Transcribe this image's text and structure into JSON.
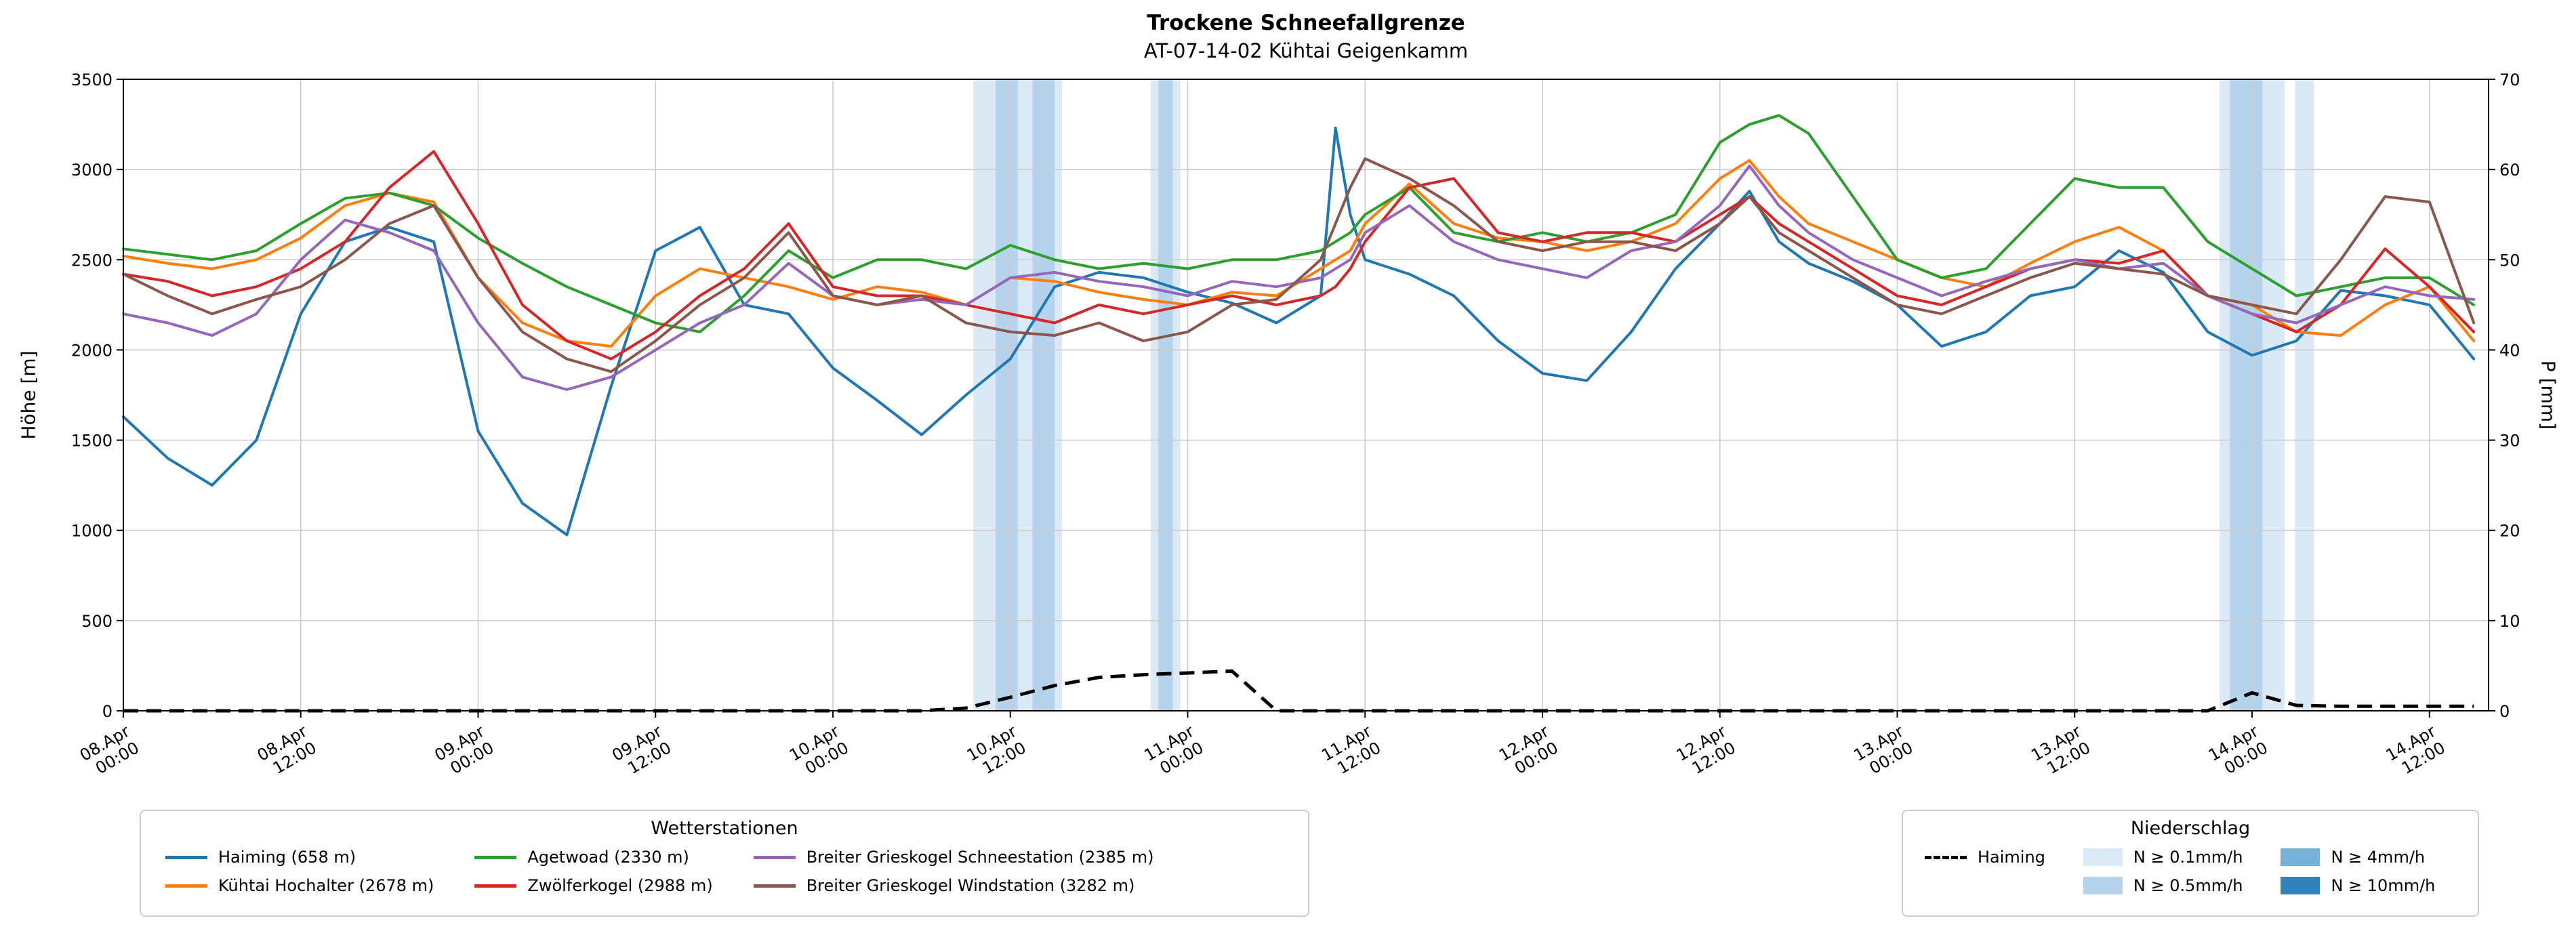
{
  "chart_data": {
    "type": "line",
    "title": "Trockene Schneefallgrenze",
    "subtitle": "AT-07-14-02 Kühtai Geigenkamm",
    "ylabel_left": "Höhe [m]",
    "ylabel_right": "P [mm]",
    "ylim_left": [
      0,
      3500
    ],
    "ylim_right": [
      0,
      70
    ],
    "xlim_hours": [
      0,
      160
    ],
    "grid": true,
    "grid_color": "#cccccc",
    "yticks_left": [
      0,
      500,
      1000,
      1500,
      2000,
      2500,
      3000,
      3500
    ],
    "yticks_right": [
      0,
      10,
      20,
      30,
      40,
      50,
      60,
      70
    ],
    "x_ticks": [
      {
        "h": 0,
        "date": "08.Apr",
        "time": "00:00"
      },
      {
        "h": 12,
        "date": "08.Apr",
        "time": "12:00"
      },
      {
        "h": 24,
        "date": "09.Apr",
        "time": "00:00"
      },
      {
        "h": 36,
        "date": "09.Apr",
        "time": "12:00"
      },
      {
        "h": 48,
        "date": "10.Apr",
        "time": "00:00"
      },
      {
        "h": 60,
        "date": "10.Apr",
        "time": "12:00"
      },
      {
        "h": 72,
        "date": "11.Apr",
        "time": "00:00"
      },
      {
        "h": 84,
        "date": "11.Apr",
        "time": "12:00"
      },
      {
        "h": 96,
        "date": "12.Apr",
        "time": "00:00"
      },
      {
        "h": 108,
        "date": "12.Apr",
        "time": "12:00"
      },
      {
        "h": 120,
        "date": "13.Apr",
        "time": "00:00"
      },
      {
        "h": 132,
        "date": "13.Apr",
        "time": "12:00"
      },
      {
        "h": 144,
        "date": "14.Apr",
        "time": "00:00"
      },
      {
        "h": 156,
        "date": "14.Apr",
        "time": "12:00"
      }
    ],
    "x_hours": [
      0,
      3,
      6,
      9,
      12,
      15,
      18,
      21,
      24,
      27,
      30,
      33,
      36,
      39,
      42,
      45,
      48,
      51,
      54,
      57,
      60,
      63,
      66,
      69,
      72,
      75,
      78,
      81,
      82,
      83,
      84,
      87,
      90,
      93,
      96,
      99,
      102,
      105,
      108,
      110,
      112,
      114,
      117,
      120,
      123,
      126,
      129,
      132,
      135,
      138,
      141,
      144,
      147,
      150,
      153,
      156,
      159
    ],
    "series": [
      {
        "name": "Haiming (658 m)",
        "color": "#1f77b4",
        "values": [
          1630,
          1400,
          1250,
          1500,
          2200,
          2600,
          2680,
          2600,
          1550,
          1150,
          975,
          1800,
          2550,
          2680,
          2250,
          2200,
          1900,
          1720,
          1530,
          1750,
          1950,
          2350,
          2430,
          2400,
          2320,
          2260,
          2150,
          2300,
          3230,
          2750,
          2500,
          2420,
          2300,
          2050,
          1870,
          1830,
          2100,
          2450,
          2700,
          2880,
          2600,
          2480,
          2380,
          2250,
          2020,
          2100,
          2300,
          2350,
          2550,
          2430,
          2100,
          1970,
          2050,
          2330,
          2300,
          2250,
          1950
        ]
      },
      {
        "name": "Kühtai Hochalter (2678 m)",
        "color": "#ff7f0e",
        "values": [
          2520,
          2480,
          2450,
          2500,
          2620,
          2800,
          2870,
          2820,
          2400,
          2150,
          2050,
          2020,
          2300,
          2450,
          2400,
          2350,
          2280,
          2350,
          2320,
          2250,
          2400,
          2380,
          2320,
          2280,
          2250,
          2320,
          2300,
          2450,
          2500,
          2550,
          2700,
          2920,
          2700,
          2620,
          2600,
          2550,
          2600,
          2700,
          2950,
          3050,
          2850,
          2700,
          2600,
          2500,
          2400,
          2350,
          2480,
          2600,
          2680,
          2550,
          2300,
          2250,
          2100,
          2080,
          2250,
          2350,
          2050
        ]
      },
      {
        "name": "Agetwoad (2330 m)",
        "color": "#2ca02c",
        "values": [
          2560,
          2530,
          2500,
          2550,
          2700,
          2840,
          2870,
          2800,
          2620,
          2480,
          2350,
          2250,
          2150,
          2100,
          2300,
          2550,
          2400,
          2500,
          2500,
          2450,
          2580,
          2500,
          2450,
          2480,
          2450,
          2500,
          2500,
          2550,
          2600,
          2650,
          2750,
          2900,
          2650,
          2600,
          2650,
          2600,
          2650,
          2750,
          3150,
          3250,
          3300,
          3200,
          2850,
          2500,
          2400,
          2450,
          2700,
          2950,
          2900,
          2900,
          2600,
          2450,
          2300,
          2350,
          2400,
          2400,
          2250
        ]
      },
      {
        "name": "Zwölferkogel (2988 m)",
        "color": "#d62728",
        "values": [
          2420,
          2380,
          2300,
          2350,
          2450,
          2600,
          2900,
          3100,
          2700,
          2250,
          2050,
          1950,
          2100,
          2300,
          2450,
          2700,
          2350,
          2300,
          2300,
          2250,
          2200,
          2150,
          2250,
          2200,
          2250,
          2300,
          2250,
          2300,
          2350,
          2450,
          2600,
          2900,
          2950,
          2650,
          2600,
          2650,
          2650,
          2600,
          2750,
          2850,
          2700,
          2600,
          2450,
          2300,
          2250,
          2350,
          2450,
          2500,
          2480,
          2550,
          2300,
          2200,
          2100,
          2250,
          2560,
          2350,
          2100
        ]
      },
      {
        "name": "Breiter Grieskogel Schneestation (2385 m)",
        "color": "#9467bd",
        "values": [
          2200,
          2150,
          2080,
          2200,
          2500,
          2720,
          2650,
          2550,
          2150,
          1850,
          1780,
          1850,
          2000,
          2150,
          2250,
          2480,
          2300,
          2250,
          2280,
          2250,
          2400,
          2430,
          2380,
          2350,
          2300,
          2380,
          2350,
          2400,
          2450,
          2500,
          2650,
          2800,
          2600,
          2500,
          2450,
          2400,
          2550,
          2600,
          2800,
          3020,
          2800,
          2650,
          2500,
          2400,
          2300,
          2380,
          2450,
          2500,
          2450,
          2480,
          2300,
          2200,
          2150,
          2250,
          2350,
          2300,
          2280
        ]
      },
      {
        "name": "Breiter Grieskogel Windstation (3282 m)",
        "color": "#8c564b",
        "values": [
          2420,
          2300,
          2200,
          2280,
          2350,
          2500,
          2700,
          2800,
          2400,
          2100,
          1950,
          1880,
          2050,
          2250,
          2400,
          2650,
          2300,
          2250,
          2300,
          2150,
          2100,
          2080,
          2150,
          2050,
          2100,
          2250,
          2280,
          2500,
          2700,
          2900,
          3060,
          2950,
          2800,
          2600,
          2550,
          2600,
          2600,
          2550,
          2700,
          2850,
          2650,
          2550,
          2400,
          2250,
          2200,
          2300,
          2400,
          2480,
          2450,
          2420,
          2300,
          2250,
          2200,
          2500,
          2850,
          2820,
          2150
        ]
      }
    ],
    "precip_line": {
      "name": "Haiming",
      "color": "#000000",
      "style": "dashed",
      "axis": "right",
      "values": [
        0,
        0,
        0,
        0,
        0,
        0,
        0,
        0,
        0,
        0,
        0,
        0,
        0,
        0,
        0,
        0,
        0,
        0,
        0,
        0.3,
        1.5,
        2.8,
        3.7,
        4.0,
        4.2,
        4.4,
        0,
        0,
        0,
        0,
        0,
        0,
        0,
        0,
        0,
        0,
        0,
        0,
        0,
        0,
        0,
        0,
        0,
        0,
        0,
        0,
        0,
        0,
        0,
        0,
        0,
        2.0,
        0.6,
        0.5,
        0.5,
        0.5,
        0.5
      ]
    },
    "precip_bands": [
      {
        "start": 57.5,
        "end": 63.5,
        "level": "0.1"
      },
      {
        "start": 59.0,
        "end": 60.5,
        "level": "0.5"
      },
      {
        "start": 61.5,
        "end": 63.0,
        "level": "0.5"
      },
      {
        "start": 69.5,
        "end": 71.5,
        "level": "0.1"
      },
      {
        "start": 70.0,
        "end": 71.0,
        "level": "0.5"
      },
      {
        "start": 141.8,
        "end": 146.2,
        "level": "0.1"
      },
      {
        "start": 142.5,
        "end": 144.7,
        "level": "0.5"
      },
      {
        "start": 146.9,
        "end": 148.2,
        "level": "0.1"
      }
    ],
    "band_colors": {
      "0.1": "#dbe9f6",
      "0.5": "#b5d3ea",
      "4": "#73b1d8",
      "10": "#3181bd"
    }
  },
  "legend_stations": {
    "title": "Wetterstationen"
  },
  "legend_precip": {
    "title": "Niederschlag",
    "line_label": "Haiming",
    "patches": [
      {
        "label": "N ≥ 0.1mm/h",
        "color": "#dbe9f6"
      },
      {
        "label": "N ≥ 0.5mm/h",
        "color": "#b5d3ea"
      },
      {
        "label": "N ≥ 4mm/h",
        "color": "#73b1d8"
      },
      {
        "label": "N ≥ 10mm/h",
        "color": "#3181bd"
      }
    ]
  }
}
